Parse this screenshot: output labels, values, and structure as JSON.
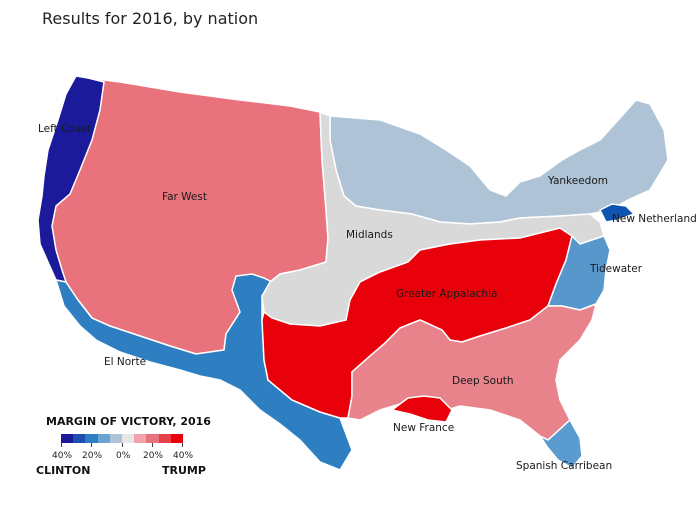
{
  "title": "Results for 2016, by nation",
  "colors": {
    "left_coast": "#1a1a9a",
    "far_west": "#e8737d",
    "el_norte": "#2e7fc2",
    "yankeedom": "#aec3d5",
    "midlands": "#d9d9d9",
    "greater_appalachia": "#e8000b",
    "deep_south": "#e8828b",
    "tidewater": "#5897cc",
    "new_netherland": "#0d55b0",
    "new_france": "#e8000b",
    "spanish_caribbean": "#5a9bd0"
  },
  "nations": {
    "left_coast": "Left Coast",
    "far_west": "Far West",
    "el_norte": "El Norte",
    "yankeedom": "Yankeedom",
    "midlands": "Midlands",
    "greater_appalachia": "Greater Appalachia",
    "deep_south": "Deep South",
    "tidewater": "Tidewater",
    "new_netherland": "New Netherland",
    "new_france": "New France",
    "spanish_caribbean": "Spanish Carribean"
  },
  "legend": {
    "title": "MARGIN OF VICTORY, 2016",
    "ticks": [
      "40%",
      "20%",
      "0%",
      "20%",
      "40%"
    ],
    "left_label": "CLINTON",
    "right_label": "TRUMP",
    "scale_colors": [
      "#1a1a9a",
      "#1f4fb0",
      "#2e7fc2",
      "#6ba3d4",
      "#aec3d5",
      "#e6e6e6",
      "#f0a3aa",
      "#e8737d",
      "#e84048",
      "#e8000b"
    ]
  }
}
